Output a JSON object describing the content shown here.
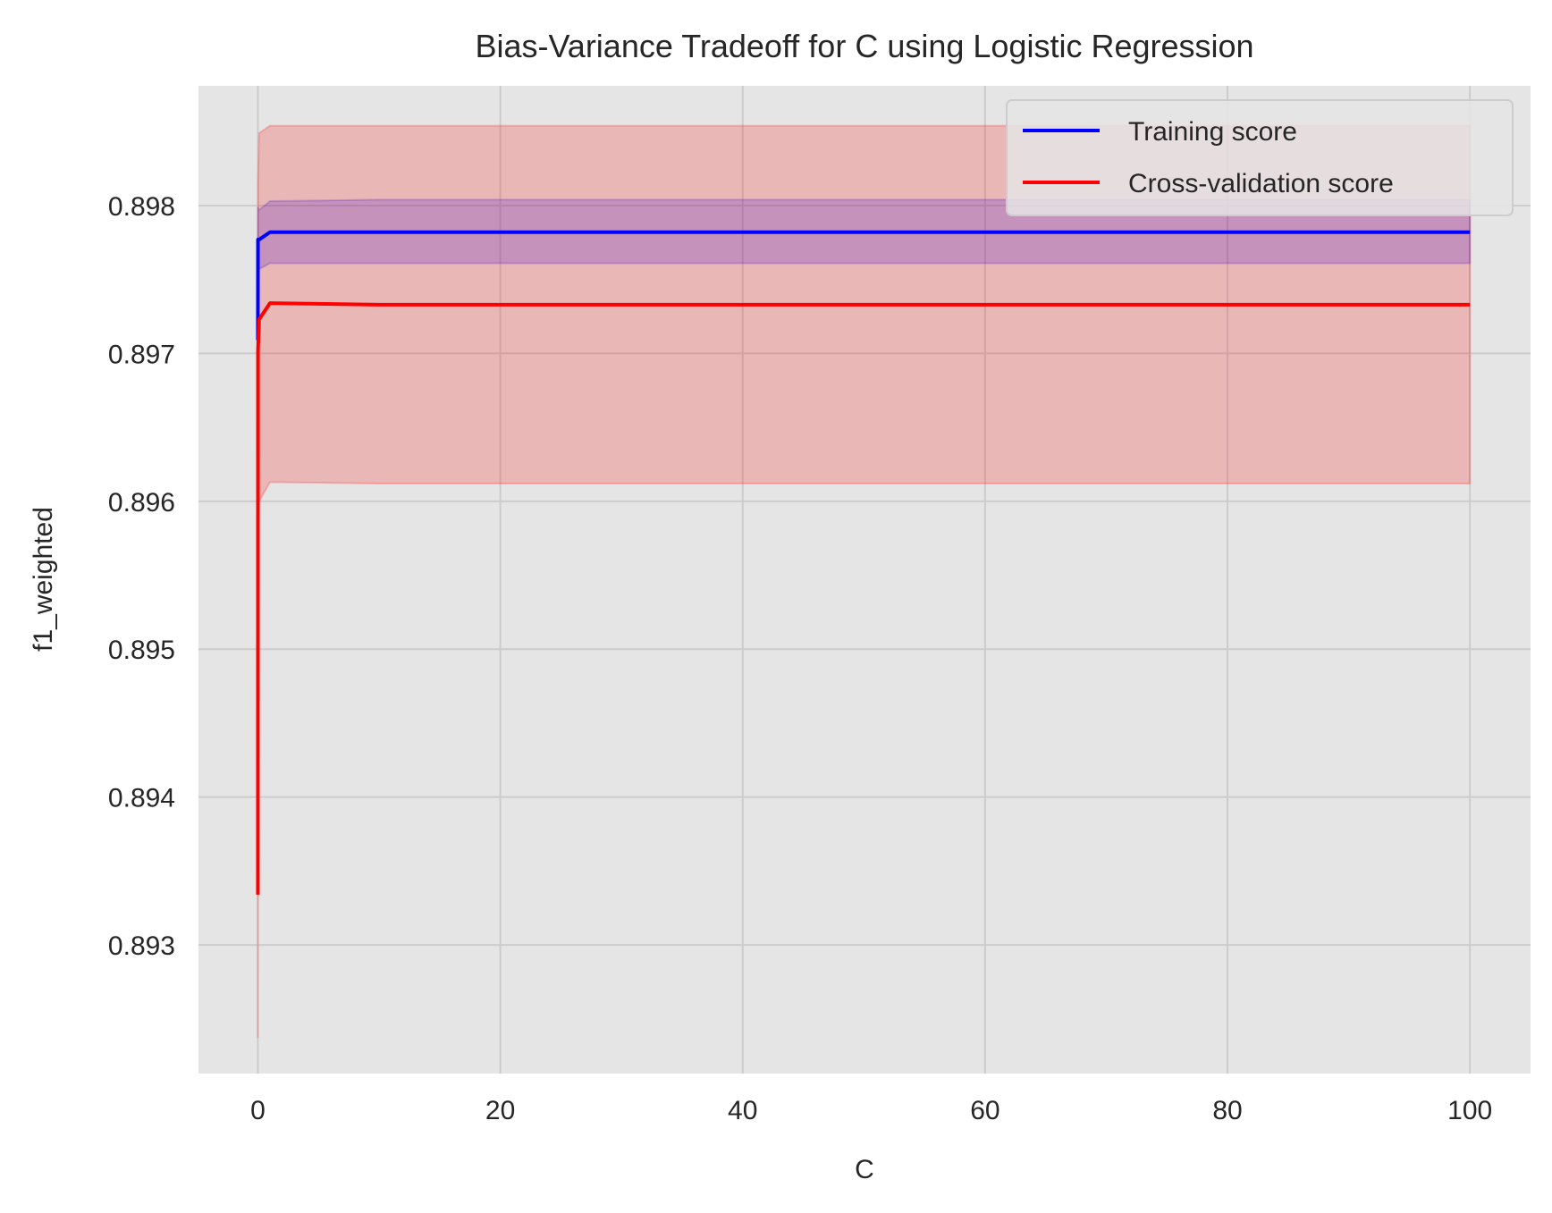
{
  "chart_data": {
    "type": "line",
    "title": "Bias-Variance Tradeoff for C using Logistic Regression",
    "xlabel": "C",
    "ylabel": "f1_weighted",
    "xlim": [
      -4.9,
      105
    ],
    "ylim": [
      0.89213,
      0.89881
    ],
    "xticks": [
      0,
      20,
      40,
      60,
      80,
      100
    ],
    "xtick_labels": [
      "0",
      "20",
      "40",
      "60",
      "80",
      "100"
    ],
    "yticks": [
      0.893,
      0.894,
      0.895,
      0.896,
      0.897,
      0.898
    ],
    "ytick_labels": [
      "0.893",
      "0.894",
      "0.895",
      "0.896",
      "0.897",
      "0.898"
    ],
    "grid": true,
    "legend_position": "upper right",
    "series": [
      {
        "name": "Training score",
        "color": "#0000ff",
        "x": [
          0.001,
          0.01,
          0.1,
          1,
          10,
          100
        ],
        "values": [
          0.89709,
          0.89777,
          0.89777,
          0.89782,
          0.89782,
          0.89782
        ],
        "band_lower": [
          0.89685,
          0.89755,
          0.89757,
          0.89761,
          0.89761,
          0.89761
        ],
        "band_upper": [
          0.89733,
          0.89799,
          0.89797,
          0.89803,
          0.89804,
          0.89804
        ]
      },
      {
        "name": "Cross-validation score",
        "color": "#ff0000",
        "x": [
          0.001,
          0.01,
          0.1,
          1,
          10,
          100
        ],
        "values": [
          0.89334,
          0.89702,
          0.89723,
          0.89734,
          0.89733,
          0.89733
        ],
        "band_lower": [
          0.89237,
          0.8959,
          0.896,
          0.89613,
          0.89612,
          0.89612
        ],
        "band_upper": [
          0.89431,
          0.89814,
          0.89849,
          0.89854,
          0.89854,
          0.89854
        ]
      }
    ]
  }
}
